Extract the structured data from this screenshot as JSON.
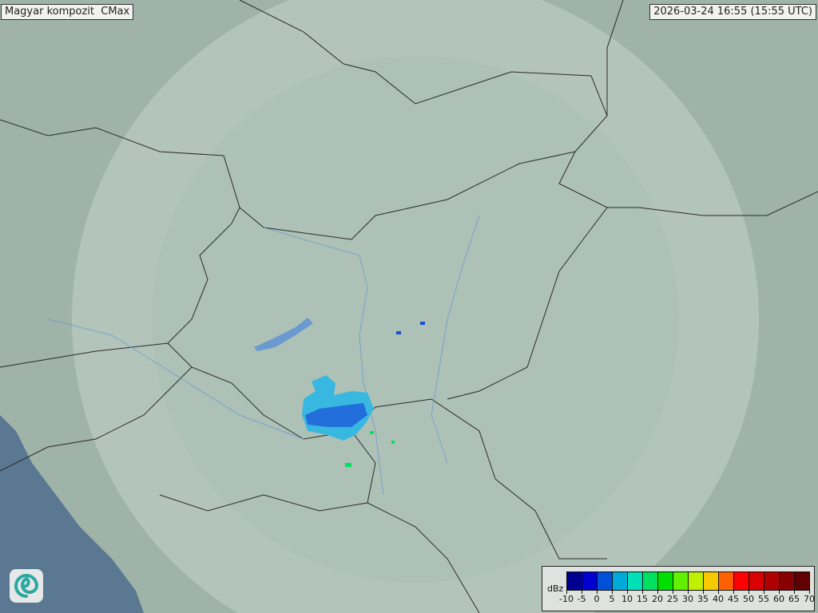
{
  "title": "Magyar kompozit  CMax",
  "timestamp": "2026-03-24 16:55 (15:55 UTC)",
  "colors": {
    "land": "#9fb3a8",
    "coverage": "#b9cbc2",
    "sea": "#5b7892",
    "border": "#2a2a2a",
    "river": "#6a9ad0",
    "echo_light": "#38b8e0",
    "echo_dark": "#1a50d8"
  },
  "legend": {
    "unit": "dBz",
    "ticks": [
      "-10",
      "-5",
      "0",
      "5",
      "10",
      "15",
      "20",
      "25",
      "30",
      "35",
      "40",
      "45",
      "50",
      "55",
      "60",
      "65",
      "70"
    ],
    "colors": [
      "#000090",
      "#0000d0",
      "#0050d8",
      "#00aad8",
      "#00e0b8",
      "#00e060",
      "#00e000",
      "#60f000",
      "#c0f000",
      "#f8c800",
      "#ff6000",
      "#ff0000",
      "#d80000",
      "#b00000",
      "#880000",
      "#600000"
    ]
  },
  "logo": {
    "icon": "swirl-logo-icon"
  }
}
